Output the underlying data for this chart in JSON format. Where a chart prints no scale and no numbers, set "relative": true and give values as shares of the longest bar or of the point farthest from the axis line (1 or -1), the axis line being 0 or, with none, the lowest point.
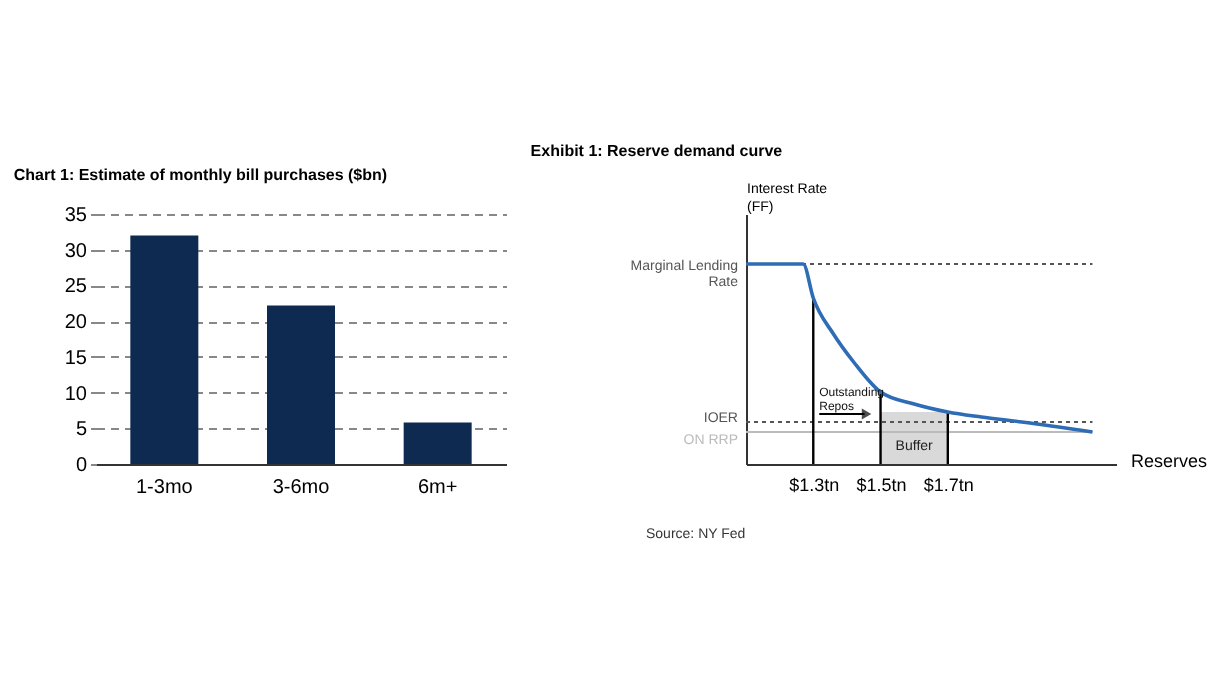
{
  "chart_data": [
    {
      "type": "bar",
      "title": "Chart 1: Estimate of monthly bill purchases ($bn)",
      "categories": [
        "1-3mo",
        "3-6mo",
        "6m+"
      ],
      "values": [
        32,
        22.2,
        5.8
      ],
      "color": "#0e2a50",
      "ylim": [
        0,
        35
      ],
      "yticks": [
        0,
        5,
        10,
        15,
        20,
        25,
        30,
        35
      ],
      "grid": "y"
    },
    {
      "type": "line",
      "title": "Exhibit 1: Reserve demand curve",
      "xlabel": "Reserves",
      "ylabel": "Interest Rate (FF)",
      "relative": true,
      "series": [
        {
          "color": "#2e6cb5",
          "x": [
            1.1,
            1.27,
            1.3,
            1.36,
            1.42,
            1.5,
            1.6,
            1.7,
            1.8,
            1.92,
            2.13
          ],
          "values": [
            1,
            1,
            0.83,
            0.65,
            0.51,
            0.36,
            0.3,
            0.26,
            0.235,
            0.21,
            0.16
          ]
        }
      ],
      "xlim": [
        1.1,
        2.2
      ],
      "xticks": [
        {
          "value": 1.3,
          "label": "$1.3tn"
        },
        {
          "value": 1.5,
          "label": "$1.5tn"
        },
        {
          "value": 1.7,
          "label": "$1.7tn"
        }
      ],
      "ref_lines": [
        {
          "axis": "y",
          "value": 1,
          "label": "Marginal Lending Rate",
          "color": "#555555",
          "line_style": "dotted"
        },
        {
          "axis": "y",
          "value": 0.21,
          "label": "IOER",
          "color": "#555555",
          "line_style": "dotted"
        },
        {
          "axis": "y",
          "value": 0.16,
          "label": "ON RRP",
          "color": "#bbbbbb",
          "line_style": "solid"
        },
        {
          "axis": "x",
          "value": 1.3,
          "color": "#000000",
          "line_style": "solid"
        },
        {
          "axis": "x",
          "value": 1.5,
          "color": "#000000",
          "line_style": "solid"
        },
        {
          "axis": "x",
          "value": 1.7,
          "color": "#000000",
          "line_style": "solid"
        }
      ],
      "bands": [
        {
          "axis": "x",
          "from": 1.5,
          "to": 1.7,
          "label": "Buffer",
          "color": "#d9d9d9"
        }
      ],
      "annotations": [
        {
          "text": "Outstanding Repos",
          "x": 1.3,
          "y": 0.26
        },
        "Source: NY Fed"
      ]
    }
  ]
}
